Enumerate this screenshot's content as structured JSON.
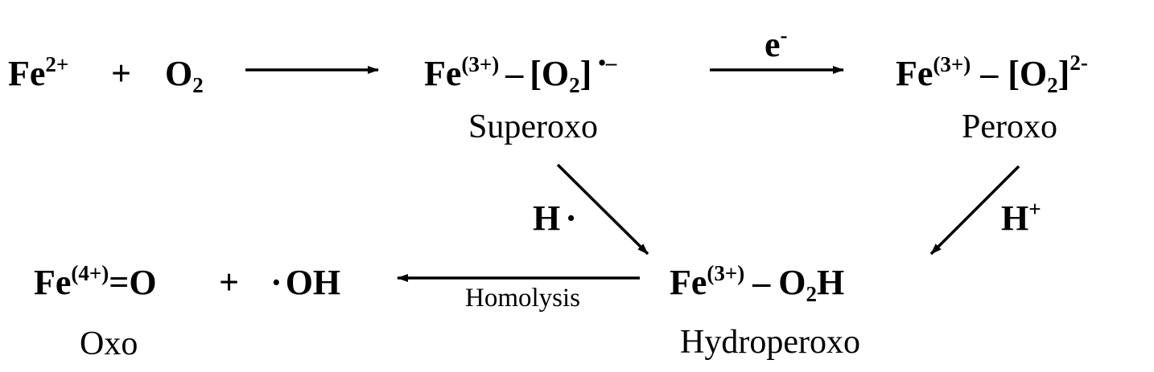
{
  "reactants": {
    "fe": "Fe",
    "fe_charge": "2+",
    "plus": "+",
    "o2": "O",
    "o2_sub": "2"
  },
  "superoxo": {
    "fe": "Fe",
    "fe_charge": "(3+)",
    "bond": "–",
    "ligand_open": "[O",
    "ligand_sub": "2",
    "ligand_close": "]",
    "ligand_charge": "•–",
    "name": "Superoxo"
  },
  "electron": {
    "base": "e",
    "charge": "-"
  },
  "peroxo": {
    "fe": "Fe",
    "fe_charge": "(3+)",
    "bond": "–",
    "ligand_open": "[O",
    "ligand_sub": "2",
    "ligand_close": "]",
    "ligand_charge": "2-",
    "name": "Peroxo"
  },
  "h_radical": {
    "base": "H",
    "dot": "·"
  },
  "h_plus": {
    "base": "H",
    "charge": "+"
  },
  "hydroperoxo": {
    "fe": "Fe",
    "fe_charge": "(3+)",
    "bond": "–",
    "o": "O",
    "o_sub": "2",
    "h": "H",
    "name": "Hydroperoxo"
  },
  "products": {
    "fe": "Fe",
    "fe_charge": "(4+)",
    "oxo_bond": "=O",
    "plus": "+",
    "radical_dot": "·",
    "oh": "OH",
    "name": "Oxo"
  },
  "homolysis": "Homolysis"
}
